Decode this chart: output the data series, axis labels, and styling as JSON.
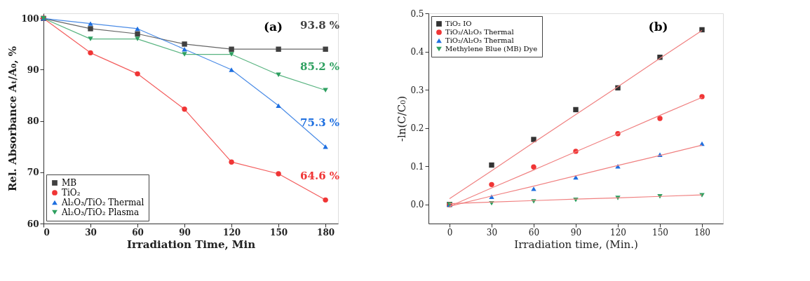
{
  "chart_data": [
    {
      "type": "line",
      "xlabel": "Irradiation Time, Min",
      "ylabel": "Rel. Absorbance Aₜ/A₀, %",
      "x": [
        0,
        30,
        60,
        90,
        120,
        150,
        180
      ],
      "xlim": [
        0,
        188
      ],
      "xticks": [
        0,
        30,
        60,
        90,
        120,
        150,
        180
      ],
      "ylim": [
        60,
        101
      ],
      "yticks": [
        60,
        70,
        80,
        90,
        100
      ],
      "grid": false,
      "legend": "bottom left",
      "line_style": "solid",
      "series": [
        {
          "name": "MB",
          "color": "#404040",
          "marker": "square",
          "values": [
            100,
            98,
            97,
            95,
            94,
            94,
            94
          ]
        },
        {
          "name": "TiO₂",
          "color": "#f03535",
          "marker": "circle",
          "values": [
            100,
            93.3,
            89.2,
            82.3,
            72,
            69.7,
            64.6
          ]
        },
        {
          "name": "Al₂O₃/TiO₂ Thermal",
          "color": "#1e6fe0",
          "marker": "triangle",
          "values": [
            100,
            99,
            98,
            94,
            90,
            83,
            75
          ]
        },
        {
          "name": "Al₂O₃/TiO₂ Plasma",
          "color": "#2ea060",
          "marker": "triangle-down",
          "values": [
            100,
            96,
            96,
            93,
            93,
            89,
            86
          ]
        }
      ],
      "annotations": [
        "(a)",
        "93.8 %",
        "85.2 %",
        "75.3 %",
        "64.6 %"
      ]
    },
    {
      "type": "scatter",
      "xlabel": "Irradiation time, (Min.)",
      "ylabel": "-ln(C/C₀)",
      "x": [
        0,
        30,
        60,
        90,
        120,
        150,
        180
      ],
      "xlim": [
        -15,
        195
      ],
      "xticks": [
        0,
        30,
        60,
        90,
        120,
        150,
        180
      ],
      "ylim": [
        -0.05,
        0.5
      ],
      "yticks": [
        {
          "value": 0,
          "label": "0.0"
        },
        0.1,
        0.2,
        0.3,
        0.4,
        0.5
      ],
      "grid": false,
      "legend": "top left",
      "series": [
        {
          "name": "TiO₂ IO",
          "color": "#333333",
          "marker": "square",
          "values": [
            0,
            0.103,
            0.17,
            0.248,
            0.305,
            0.385,
            0.457
          ]
        },
        {
          "name": "TiO₂/Al₂O₃ Thermal",
          "color": "#f03535",
          "marker": "circle",
          "values": [
            0,
            0.052,
            0.098,
            0.139,
            0.185,
            0.225,
            0.282
          ]
        },
        {
          "name": "TiO₂/Al₂O₃ Thermal",
          "color": "#1e6fe0",
          "marker": "triangle",
          "values": [
            0,
            0.02,
            0.041,
            0.071,
            0.1,
            0.13,
            0.159
          ]
        },
        {
          "name": "Methylene Blue (MB) Dye",
          "color": "#2ea060",
          "marker": "triangle-down",
          "values": [
            0,
            0.003,
            0.008,
            0.012,
            0.017,
            0.021,
            0.024
          ]
        },
        {
          "type": "line",
          "color": "#f08080",
          "values": [
            0.015,
            0.088,
            0.162,
            0.235,
            0.308,
            0.382,
            0.455
          ]
        },
        {
          "type": "line",
          "color": "#f08080",
          "values": [
            -0.005,
            0.043,
            0.09,
            0.138,
            0.185,
            0.233,
            0.28
          ]
        },
        {
          "type": "line",
          "color": "#f08080",
          "values": [
            -0.005,
            0.022,
            0.048,
            0.075,
            0.102,
            0.128,
            0.155
          ]
        },
        {
          "type": "line",
          "color": "#f08080",
          "values": [
            0.002,
            0.006,
            0.01,
            0.014,
            0.017,
            0.021,
            0.025
          ]
        }
      ],
      "annotations": [
        "(b)"
      ]
    }
  ]
}
